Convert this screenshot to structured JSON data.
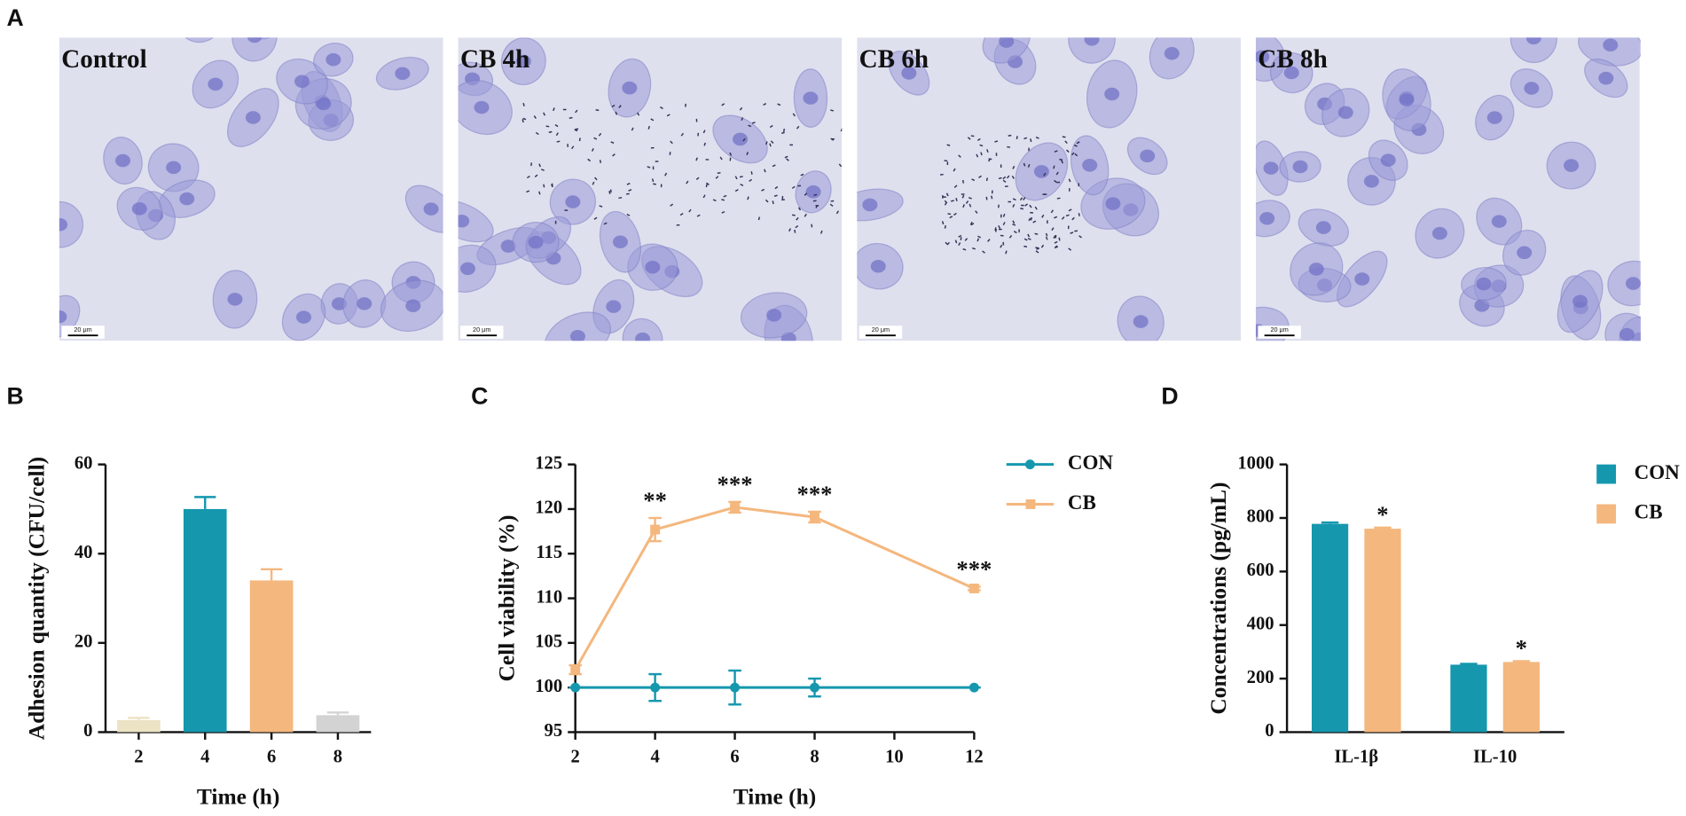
{
  "panel_labels": [
    "A",
    "B",
    "C",
    "D"
  ],
  "images": [
    {
      "label": "Control",
      "scale_bar": "20 μm"
    },
    {
      "label": "CB 4h",
      "scale_bar": "20 μm"
    },
    {
      "label": "CB 6h",
      "scale_bar": "20 μm"
    },
    {
      "label": "CB 8h",
      "scale_bar": "20 μm"
    }
  ],
  "chart_data": [
    {
      "type": "bar",
      "xlabel": "Time (h)",
      "ylabel": "Adhesion quantity (CFU/cell)",
      "categories": [
        "2",
        "4",
        "6",
        "8"
      ],
      "values": [
        2.7,
        50,
        34,
        3.8
      ],
      "errors": [
        0.5,
        2.7,
        2.5,
        0.6
      ],
      "colors": [
        "#ece3c4",
        "#1597ae",
        "#f4b77e",
        "#d3d3d3"
      ],
      "ylim": [
        0,
        60
      ],
      "yticks": [
        0,
        20,
        40,
        60
      ]
    },
    {
      "type": "line",
      "xlabel": "Time (h)",
      "ylabel": "Cell viability (%)",
      "x": [
        2,
        4,
        6,
        8,
        12
      ],
      "series": [
        {
          "name": "CON",
          "color": "#1597ae",
          "marker": "circle",
          "values": [
            100,
            100,
            100,
            100,
            100
          ],
          "errors": [
            0,
            1.5,
            1.9,
            1,
            0
          ],
          "point_labels": [
            null,
            null,
            null,
            null,
            null
          ]
        },
        {
          "name": "CB",
          "color": "#f4b77e",
          "marker": "square",
          "values": [
            102,
            117.7,
            120.2,
            119.1,
            111.1
          ],
          "errors": [
            0.5,
            1.3,
            0.6,
            0.6,
            0.2
          ],
          "point_labels": [
            null,
            "**",
            "***",
            "***",
            "***"
          ]
        }
      ],
      "xlim": [
        2,
        12
      ],
      "xticks": [
        2,
        4,
        6,
        8,
        10,
        12
      ],
      "ylim": [
        95,
        125
      ],
      "yticks": [
        95,
        100,
        105,
        110,
        115,
        120,
        125
      ],
      "legend": "upper right"
    },
    {
      "type": "grouped_bar",
      "ylabel": "Concentrations (pg/mL)",
      "categories": [
        "IL-1β",
        "IL-10"
      ],
      "series": [
        {
          "name": "CON",
          "color": "#1597ae",
          "values": [
            778,
            252
          ],
          "errors": [
            5,
            3
          ],
          "point_labels": [
            null,
            null
          ]
        },
        {
          "name": "CB",
          "color": "#f4b77e",
          "values": [
            760,
            262
          ],
          "errors": [
            4,
            3
          ],
          "point_labels": [
            "*",
            "*"
          ]
        }
      ],
      "ylim": [
        0,
        1000
      ],
      "yticks": [
        0,
        200,
        400,
        600,
        800,
        1000
      ],
      "legend": "upper right"
    }
  ]
}
